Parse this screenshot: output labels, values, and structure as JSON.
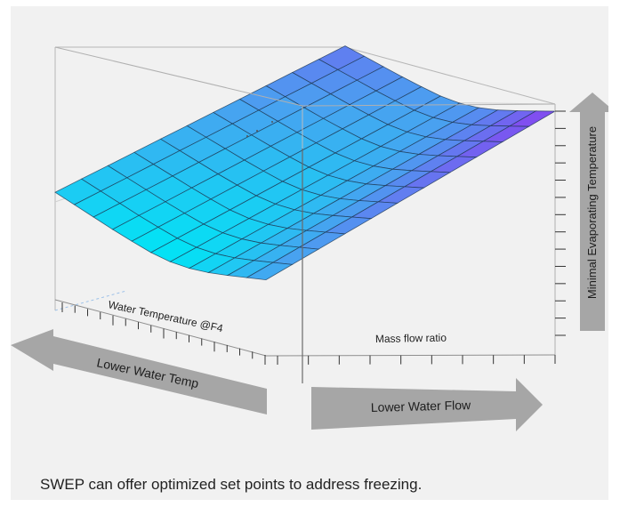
{
  "caption": "SWEP can offer optimized set points to address freezing.",
  "chart_data": {
    "type": "surface3d",
    "axes": {
      "x": {
        "label": "Water Temperature @F4"
      },
      "y": {
        "label": "Mass flow ratio"
      },
      "z": {
        "label": "Minimal Evaporating Temperature"
      }
    },
    "grid_cells": [
      11,
      12
    ],
    "surface_height": [
      [
        0.38,
        0.33,
        0.28,
        0.23,
        0.19,
        0.16,
        0.17,
        0.23,
        0.33,
        0.46,
        0.6,
        0.74
      ],
      [
        0.44,
        0.39,
        0.34,
        0.29,
        0.25,
        0.22,
        0.23,
        0.29,
        0.39,
        0.52,
        0.66,
        0.8
      ],
      [
        0.5,
        0.45,
        0.4,
        0.35,
        0.31,
        0.28,
        0.29,
        0.35,
        0.45,
        0.58,
        0.72,
        0.86
      ],
      [
        0.56,
        0.51,
        0.46,
        0.41,
        0.37,
        0.34,
        0.35,
        0.41,
        0.51,
        0.64,
        0.78,
        0.92
      ],
      [
        0.62,
        0.57,
        0.52,
        0.47,
        0.43,
        0.4,
        0.41,
        0.47,
        0.57,
        0.7,
        0.84,
        0.98
      ],
      [
        0.68,
        0.63,
        0.58,
        0.53,
        0.49,
        0.46,
        0.47,
        0.53,
        0.63,
        0.76,
        0.9,
        1.04
      ],
      [
        0.74,
        0.69,
        0.64,
        0.59,
        0.55,
        0.52,
        0.53,
        0.59,
        0.69,
        0.82,
        0.96,
        1.1
      ],
      [
        0.8,
        0.75,
        0.7,
        0.65,
        0.61,
        0.58,
        0.59,
        0.65,
        0.75,
        0.88,
        1.02,
        1.16
      ],
      [
        0.86,
        0.81,
        0.76,
        0.71,
        0.67,
        0.64,
        0.65,
        0.71,
        0.81,
        0.94,
        1.08,
        1.22
      ],
      [
        0.92,
        0.87,
        0.82,
        0.77,
        0.73,
        0.7,
        0.71,
        0.77,
        0.87,
        1.0,
        1.14,
        1.28
      ],
      [
        0.98,
        0.93,
        0.88,
        0.83,
        0.79,
        0.76,
        0.77,
        0.83,
        0.93,
        1.06,
        1.2,
        1.34
      ],
      [
        1.04,
        0.99,
        0.94,
        0.89,
        0.85,
        0.82,
        0.83,
        0.89,
        0.99,
        1.12,
        1.26,
        1.4
      ]
    ],
    "arrows": {
      "left": "Lower Water Temp",
      "right": "Lower Water Flow",
      "up": "Minimal Evaporating Temperature"
    },
    "colors": {
      "low": "#00e5f5",
      "mid": "#4aa0f0",
      "high": "#8a3ff0",
      "arrow": "#a6a6a6",
      "box": "#b0b0b0",
      "grid": "#1c3550"
    }
  }
}
